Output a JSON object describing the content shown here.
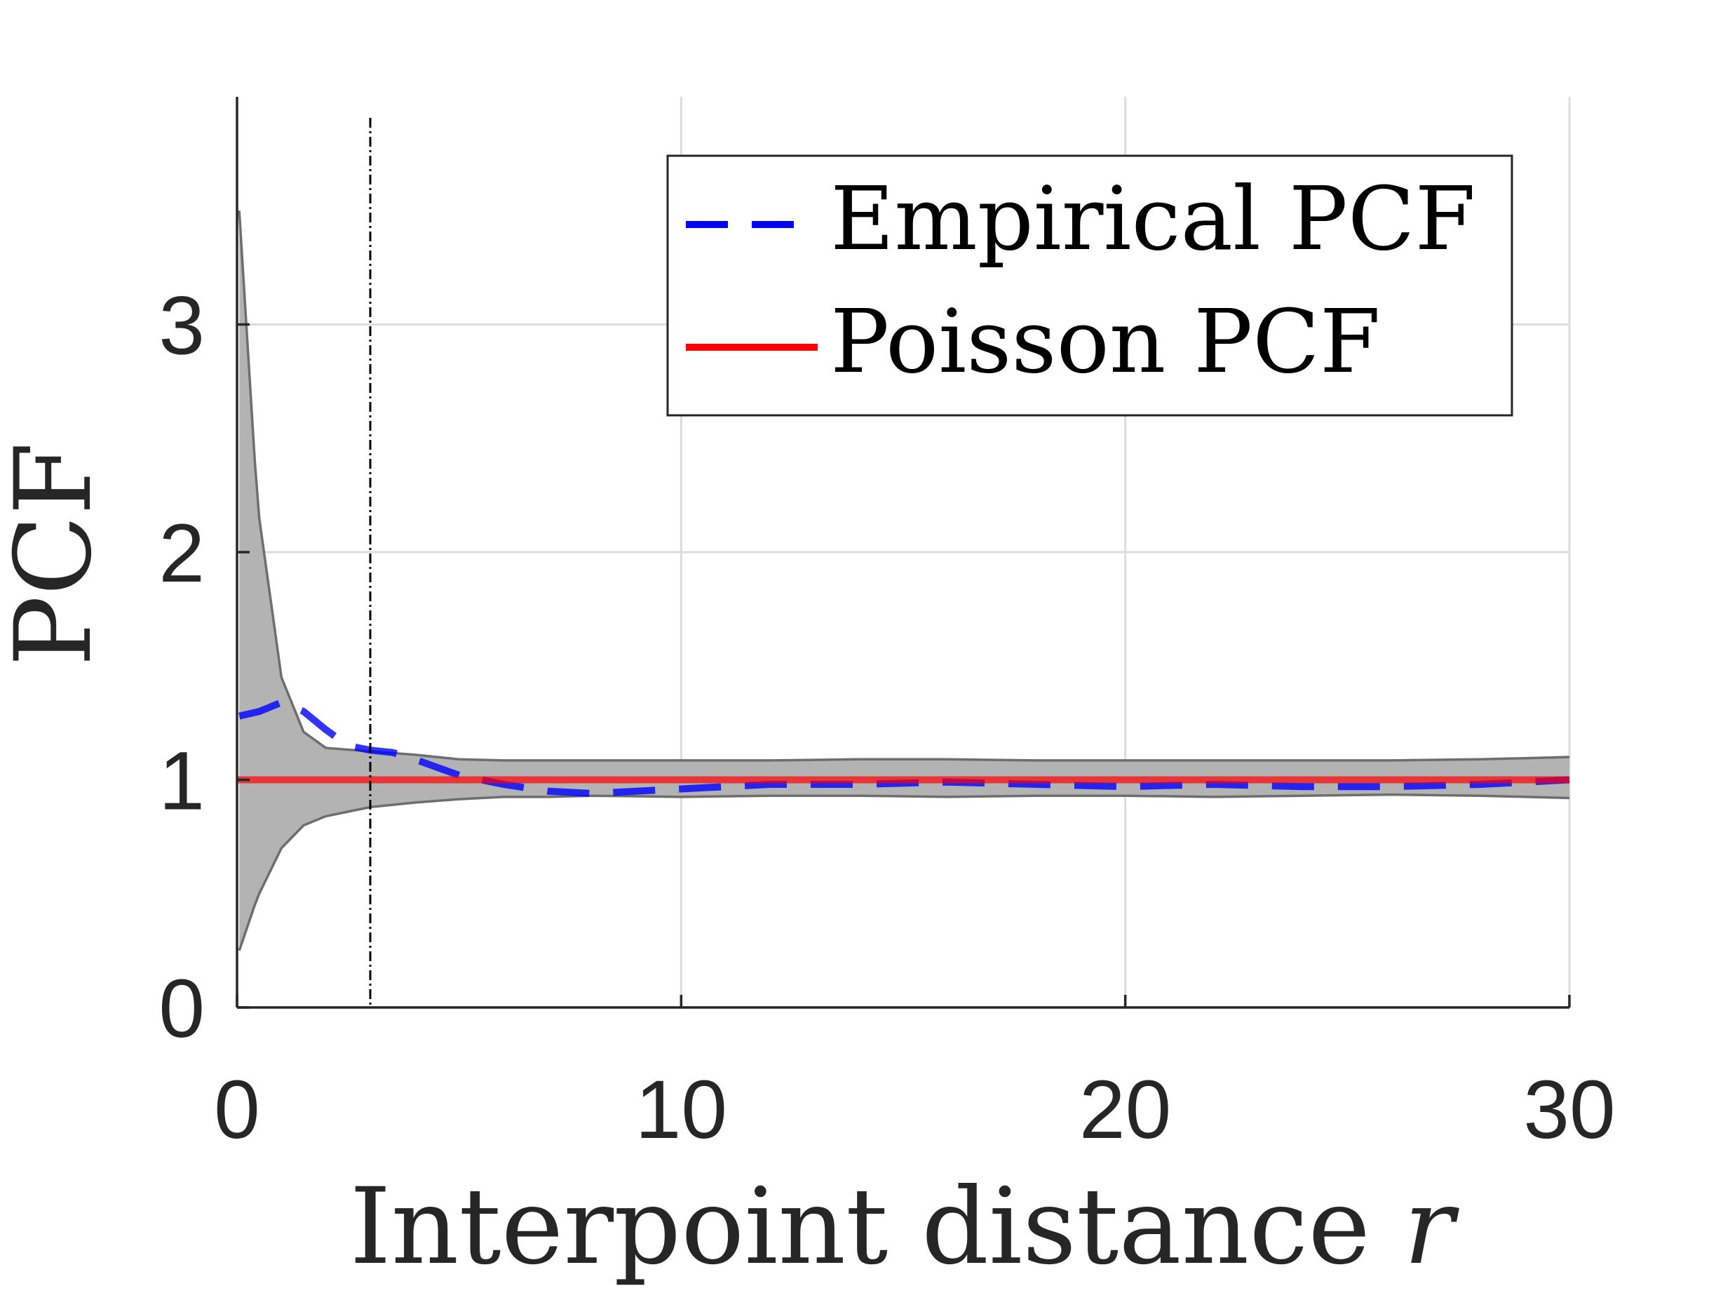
{
  "chart_data": {
    "type": "line",
    "title": "",
    "xlabel": "Interpoint distance",
    "xlabel_variable": "r",
    "ylabel": "PCF",
    "xlim": [
      0,
      30
    ],
    "ylim": [
      0,
      4
    ],
    "xticks": [
      "0",
      "10",
      "20",
      "30"
    ],
    "yticks": [
      "0",
      "1",
      "2",
      "3"
    ],
    "xtick_values": [
      0,
      10,
      20,
      30
    ],
    "ytick_values": [
      0,
      1,
      2,
      3
    ],
    "grid": true,
    "legend_position": "top-right",
    "vertical_reference_line": {
      "x": 3,
      "style": "dash-dot",
      "color": "#000000"
    },
    "envelope": {
      "x": [
        0.05,
        0.4,
        0.5,
        1.0,
        1.5,
        2.0,
        3.0,
        4.0,
        5.0,
        6.0,
        7.0,
        8.0,
        10.0,
        12.0,
        14.0,
        16.0,
        18.0,
        20.0,
        22.0,
        24.0,
        26.0,
        28.0,
        30.0
      ],
      "upper": [
        3.5,
        2.4,
        2.15,
        1.45,
        1.21,
        1.14,
        1.125,
        1.11,
        1.09,
        1.085,
        1.085,
        1.085,
        1.085,
        1.085,
        1.09,
        1.09,
        1.085,
        1.085,
        1.085,
        1.085,
        1.085,
        1.09,
        1.1
      ],
      "lower": [
        0.25,
        0.45,
        0.5,
        0.7,
        0.8,
        0.84,
        0.88,
        0.9,
        0.915,
        0.925,
        0.925,
        0.93,
        0.925,
        0.93,
        0.93,
        0.925,
        0.93,
        0.93,
        0.925,
        0.93,
        0.935,
        0.93,
        0.92
      ],
      "fill_color": "#b3b3b3",
      "edge_color": "#6e6e6e"
    },
    "series": [
      {
        "name": "Empirical PCF",
        "style": "dashed",
        "color": "#0000ff",
        "x": [
          0.05,
          0.5,
          1.0,
          1.5,
          2.0,
          2.5,
          3.0,
          3.5,
          4.0,
          5.0,
          6.0,
          7.0,
          8.0,
          9.0,
          10.0,
          12.0,
          14.0,
          16.0,
          18.0,
          20.0,
          22.0,
          24.0,
          26.0,
          28.0,
          30.0
        ],
        "y": [
          1.28,
          1.3,
          1.34,
          1.3,
          1.22,
          1.15,
          1.13,
          1.12,
          1.09,
          1.02,
          0.98,
          0.95,
          0.94,
          0.95,
          0.96,
          0.98,
          0.98,
          0.99,
          0.98,
          0.97,
          0.98,
          0.97,
          0.97,
          0.98,
          1.0
        ]
      },
      {
        "name": "Poisson PCF",
        "style": "solid",
        "color": "#ff0000",
        "x": [
          0,
          30
        ],
        "y": [
          1,
          1
        ]
      }
    ]
  }
}
